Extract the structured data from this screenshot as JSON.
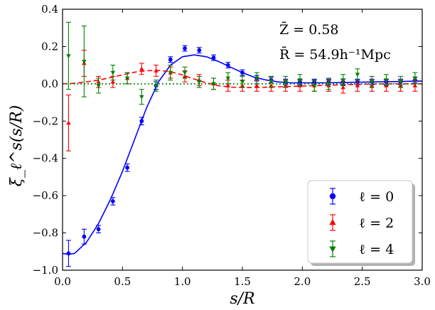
{
  "chart_data": {
    "type": "scatter",
    "xlabel": "s/R",
    "ylabel": "ξ_ℓ^s(s/R)",
    "xlim": [
      0.0,
      3.0
    ],
    "ylim": [
      -1.0,
      0.4
    ],
    "xticks": [
      0.0,
      0.5,
      1.0,
      1.5,
      2.0,
      2.5,
      3.0
    ],
    "xtick_labels": [
      "0.0",
      "0.5",
      "1.0",
      "1.5",
      "2.0",
      "2.5",
      "3.0"
    ],
    "yticks": [
      -1.0,
      -0.8,
      -0.6,
      -0.4,
      -0.2,
      0.0,
      0.2,
      0.4
    ],
    "ytick_labels": [
      "−1.0",
      "−0.8",
      "−0.6",
      "−0.4",
      "−0.2",
      "0.0",
      "0.2",
      "0.4"
    ],
    "annotations": [
      "Z̄ = 0.58",
      "R̄ = 54.9h⁻¹Mpc"
    ],
    "legend_position": "lower-right",
    "series": [
      {
        "name": "ℓ = 0",
        "color": "#0000ff",
        "marker": "circle",
        "line_style": "solid",
        "x": [
          0.05,
          0.18,
          0.3,
          0.42,
          0.54,
          0.66,
          0.78,
          0.9,
          1.02,
          1.14,
          1.26,
          1.38,
          1.5,
          1.62,
          1.74,
          1.86,
          1.98,
          2.1,
          2.22,
          2.34,
          2.46,
          2.58,
          2.7,
          2.82,
          2.94
        ],
        "y": [
          -0.91,
          -0.82,
          -0.78,
          -0.63,
          -0.45,
          -0.2,
          -0.01,
          0.13,
          0.19,
          0.18,
          0.14,
          0.1,
          0.06,
          0.03,
          0.02,
          0.01,
          0.01,
          0.01,
          0.01,
          0.01,
          0.01,
          0.01,
          0.01,
          0.01,
          0.02
        ],
        "err": [
          0.07,
          0.04,
          0.02,
          0.02,
          0.02,
          0.02,
          0.02,
          0.015,
          0.015,
          0.015,
          0.015,
          0.015,
          0.015,
          0.015,
          0.015,
          0.015,
          0.015,
          0.015,
          0.015,
          0.015,
          0.015,
          0.015,
          0.015,
          0.015,
          0.015
        ],
        "model_curve_x": [
          0.0,
          0.05,
          0.1,
          0.2,
          0.3,
          0.4,
          0.5,
          0.6,
          0.7,
          0.8,
          0.9,
          1.0,
          1.1,
          1.2,
          1.3,
          1.4,
          1.5,
          1.6,
          1.7,
          1.8,
          1.9,
          2.0,
          2.2,
          2.4,
          2.6,
          2.8,
          3.0
        ],
        "model_curve_y": [
          -0.91,
          -0.915,
          -0.91,
          -0.85,
          -0.75,
          -0.62,
          -0.47,
          -0.3,
          -0.13,
          0.01,
          0.1,
          0.145,
          0.155,
          0.145,
          0.12,
          0.09,
          0.06,
          0.035,
          0.02,
          0.01,
          0.005,
          0.005,
          0.005,
          0.008,
          0.01,
          0.012,
          0.015
        ]
      },
      {
        "name": "ℓ = 2",
        "color": "#ff0000",
        "marker": "triangle-up",
        "line_style": "dashed",
        "x": [
          0.05,
          0.18,
          0.3,
          0.42,
          0.54,
          0.66,
          0.78,
          0.9,
          1.02,
          1.14,
          1.26,
          1.38,
          1.5,
          1.62,
          1.74,
          1.86,
          1.98,
          2.1,
          2.22,
          2.34,
          2.46,
          2.58,
          2.7,
          2.82,
          2.94
        ],
        "y": [
          -0.21,
          0.11,
          0.01,
          0.01,
          0.03,
          0.08,
          0.07,
          0.06,
          0.04,
          0.02,
          0.0,
          -0.01,
          -0.01,
          -0.01,
          -0.01,
          -0.01,
          -0.01,
          -0.01,
          -0.01,
          -0.02,
          -0.01,
          -0.01,
          -0.01,
          -0.01,
          -0.01
        ],
        "err": [
          0.15,
          0.07,
          0.03,
          0.03,
          0.03,
          0.03,
          0.03,
          0.03,
          0.03,
          0.03,
          0.03,
          0.03,
          0.03,
          0.03,
          0.03,
          0.03,
          0.03,
          0.03,
          0.03,
          0.03,
          0.03,
          0.03,
          0.03,
          0.03,
          0.03
        ],
        "model_curve_x": [
          0.0,
          0.1,
          0.2,
          0.3,
          0.4,
          0.5,
          0.6,
          0.7,
          0.8,
          0.9,
          1.0,
          1.1,
          1.2,
          1.3,
          1.4,
          1.6,
          1.8,
          2.0,
          2.2,
          2.4,
          2.6,
          2.8,
          3.0
        ],
        "model_curve_y": [
          0.0,
          0.003,
          0.01,
          0.02,
          0.033,
          0.048,
          0.062,
          0.07,
          0.072,
          0.065,
          0.048,
          0.025,
          0.005,
          -0.01,
          -0.018,
          -0.02,
          -0.016,
          -0.012,
          -0.008,
          -0.004,
          -0.001,
          0.0,
          0.0
        ]
      },
      {
        "name": "ℓ = 4",
        "color": "#008000",
        "marker": "triangle-down",
        "line_style": "dotted",
        "x": [
          0.05,
          0.18,
          0.3,
          0.42,
          0.54,
          0.66,
          0.78,
          0.9,
          1.02,
          1.14,
          1.26,
          1.38,
          1.5,
          1.62,
          1.74,
          1.86,
          1.98,
          2.1,
          2.22,
          2.34,
          2.46,
          2.58,
          2.7,
          2.82,
          2.94
        ],
        "y": [
          0.15,
          0.12,
          -0.01,
          0.06,
          0.03,
          -0.07,
          -0.01,
          0.06,
          0.06,
          0.01,
          0.0,
          0.03,
          0.01,
          0.03,
          0.01,
          0.01,
          0.02,
          -0.01,
          0.0,
          0.02,
          0.05,
          0.01,
          0.02,
          0.01,
          0.03
        ],
        "err": [
          0.18,
          0.19,
          0.04,
          0.04,
          0.03,
          0.04,
          0.03,
          0.04,
          0.03,
          0.03,
          0.03,
          0.03,
          0.03,
          0.03,
          0.03,
          0.03,
          0.03,
          0.03,
          0.03,
          0.03,
          0.03,
          0.03,
          0.03,
          0.03,
          0.03
        ],
        "model_curve_x": [
          0.0,
          3.0
        ],
        "model_curve_y": [
          0.0,
          0.0
        ]
      }
    ]
  }
}
